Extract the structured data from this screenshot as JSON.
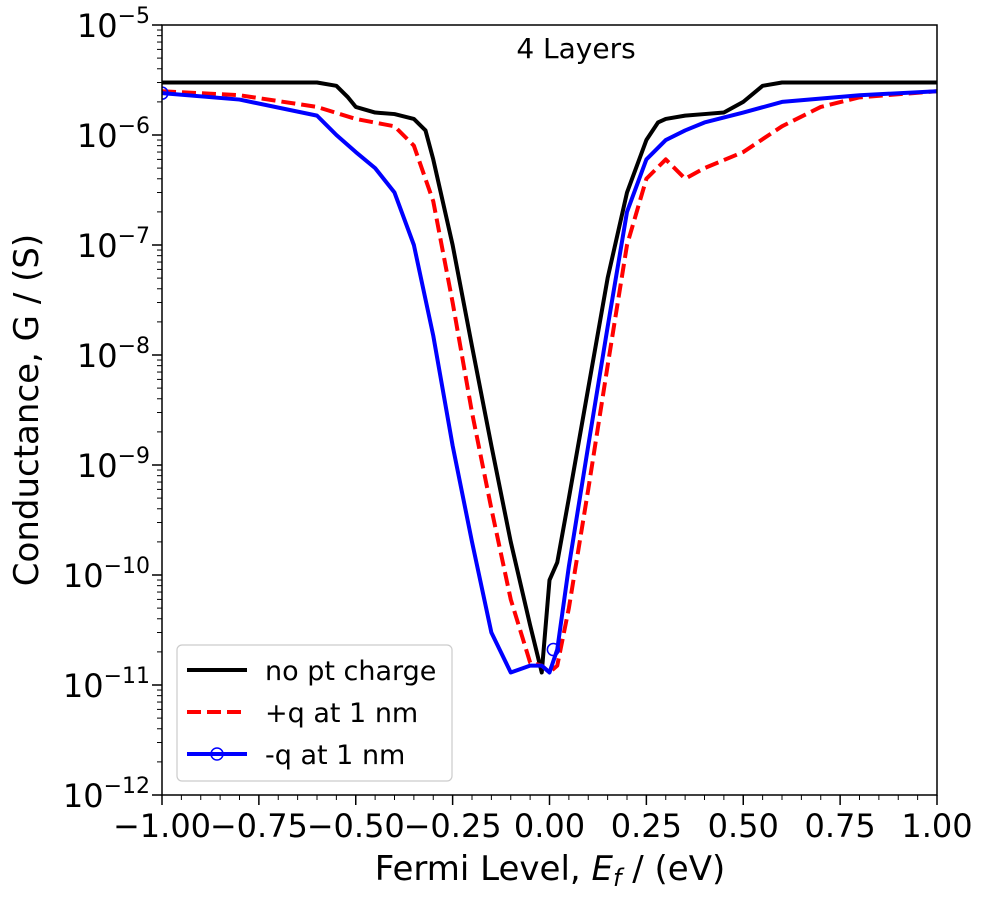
{
  "chart_data": {
    "type": "line",
    "title": "",
    "annotation": "4 Layers",
    "xlabel_prefix": "Fermi Level, ",
    "xlabel_sym": "E",
    "xlabel_sub": "f",
    "xlabel_suffix": " / (eV)",
    "ylabel": "Conductance, G / (S)",
    "xlim": [
      -1.0,
      1.0
    ],
    "ylim": [
      1e-12,
      1e-05
    ],
    "yscale": "log",
    "grid": false,
    "legend_position": "lower-left",
    "x_ticks": [
      "−1.00",
      "−0.75",
      "−0.50",
      "−0.25",
      "0.00",
      "0.25",
      "0.50",
      "0.75",
      "1.00"
    ],
    "y_ticks": [
      {
        "base": "10",
        "exp": "−12"
      },
      {
        "base": "10",
        "exp": "−11"
      },
      {
        "base": "10",
        "exp": "−10"
      },
      {
        "base": "10",
        "exp": "−9"
      },
      {
        "base": "10",
        "exp": "−8"
      },
      {
        "base": "10",
        "exp": "−7"
      },
      {
        "base": "10",
        "exp": "−6"
      },
      {
        "base": "10",
        "exp": "−5"
      }
    ],
    "series": [
      {
        "name": "no pt charge",
        "color": "#000000",
        "style": "solid",
        "marker": "none",
        "x": [
          -1.0,
          -0.6,
          -0.55,
          -0.52,
          -0.5,
          -0.45,
          -0.4,
          -0.35,
          -0.32,
          -0.3,
          -0.25,
          -0.2,
          -0.15,
          -0.1,
          -0.05,
          -0.02,
          0.0,
          0.02,
          0.05,
          0.1,
          0.15,
          0.2,
          0.25,
          0.28,
          0.3,
          0.35,
          0.4,
          0.45,
          0.5,
          0.55,
          0.6,
          1.0
        ],
        "y": [
          3e-06,
          3e-06,
          2.8e-06,
          2.2e-06,
          1.8e-06,
          1.6e-06,
          1.55e-06,
          1.4e-06,
          1.1e-06,
          6e-07,
          1e-07,
          1.2e-08,
          1.5e-09,
          2e-10,
          3.5e-11,
          1.3e-11,
          9e-11,
          1.3e-10,
          5e-10,
          5e-09,
          5e-08,
          3e-07,
          9e-07,
          1.3e-06,
          1.4e-06,
          1.5e-06,
          1.55e-06,
          1.6e-06,
          2e-06,
          2.8e-06,
          3e-06,
          3e-06
        ]
      },
      {
        "name": "+q at 1 nm",
        "color": "#ff0000",
        "style": "dashed",
        "marker": "none",
        "x": [
          -1.0,
          -0.8,
          -0.6,
          -0.5,
          -0.4,
          -0.35,
          -0.3,
          -0.25,
          -0.2,
          -0.15,
          -0.1,
          -0.05,
          -0.02,
          0.0,
          0.02,
          0.05,
          0.1,
          0.15,
          0.2,
          0.25,
          0.3,
          0.35,
          0.4,
          0.5,
          0.6,
          0.7,
          0.8,
          1.0
        ],
        "y": [
          2.5e-06,
          2.3e-06,
          1.8e-06,
          1.4e-06,
          1.2e-06,
          8e-07,
          2.5e-07,
          3e-08,
          3e-09,
          4e-10,
          6e-11,
          1.6e-11,
          1.5e-11,
          1.3e-11,
          1.5e-11,
          5e-11,
          6e-10,
          8e-09,
          1e-07,
          4e-07,
          6e-07,
          4e-07,
          5e-07,
          7e-07,
          1.2e-06,
          1.8e-06,
          2.2e-06,
          2.5e-06
        ]
      },
      {
        "name": "-q at 1 nm",
        "color": "#0000ff",
        "style": "solid",
        "marker": "circle",
        "marker_points": [
          [
            -1.0,
            2.4e-06
          ],
          [
            0.01,
            2.1e-11
          ]
        ],
        "x": [
          -1.0,
          -0.8,
          -0.6,
          -0.55,
          -0.5,
          -0.45,
          -0.4,
          -0.35,
          -0.3,
          -0.25,
          -0.2,
          -0.15,
          -0.1,
          -0.05,
          -0.02,
          0.0,
          0.02,
          0.05,
          0.1,
          0.15,
          0.2,
          0.25,
          0.3,
          0.35,
          0.4,
          0.5,
          0.6,
          0.8,
          1.0
        ],
        "y": [
          2.4e-06,
          2.1e-06,
          1.5e-06,
          1e-06,
          7e-07,
          5e-07,
          3e-07,
          1e-07,
          1.5e-08,
          1.5e-09,
          2e-10,
          3e-11,
          1.3e-11,
          1.5e-11,
          1.5e-11,
          1.3e-11,
          2.1e-11,
          1.2e-10,
          1.5e-09,
          1.8e-08,
          2e-07,
          6e-07,
          9e-07,
          1.1e-06,
          1.3e-06,
          1.6e-06,
          2e-06,
          2.3e-06,
          2.5e-06
        ]
      }
    ]
  }
}
